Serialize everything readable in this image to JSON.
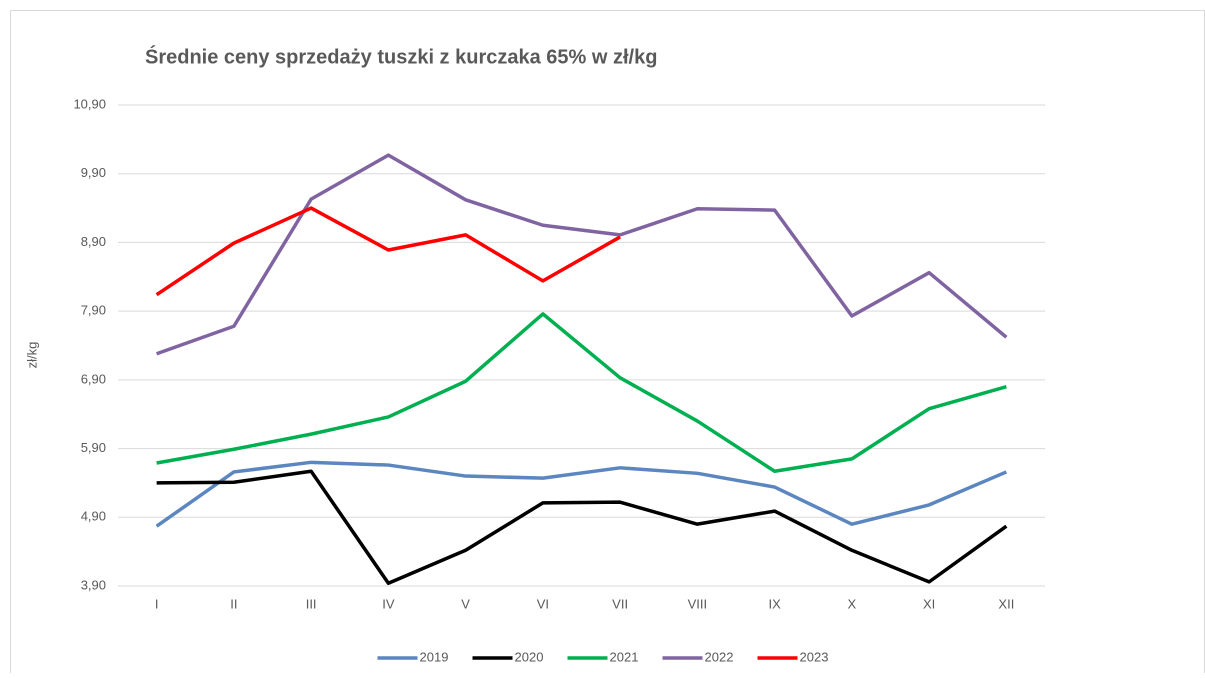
{
  "chart_data": {
    "type": "line",
    "title": "Średnie ceny sprzedaży tuszki z kurczaka 65% w zł/kg",
    "y_label": "zł/kg",
    "categories": [
      "I",
      "II",
      "III",
      "IV",
      "V",
      "VI",
      "VII",
      "VIII",
      "IX",
      "X",
      "XI",
      "XII"
    ],
    "series": [
      {
        "name": "2019",
        "color": "#5b86c0",
        "values": [
          4.77,
          5.56,
          5.7,
          5.66,
          5.5,
          5.47,
          5.62,
          5.54,
          5.34,
          4.8,
          5.08,
          5.56
        ]
      },
      {
        "name": "2020",
        "color": "#000000",
        "values": [
          5.4,
          5.41,
          5.57,
          3.94,
          4.42,
          5.11,
          5.12,
          4.8,
          4.99,
          4.42,
          3.96,
          4.77
        ]
      },
      {
        "name": "2021",
        "color": "#00b050",
        "values": [
          5.69,
          5.89,
          6.11,
          6.36,
          6.88,
          7.86,
          6.93,
          6.3,
          5.57,
          5.75,
          6.48,
          6.8
        ]
      },
      {
        "name": "2022",
        "color": "#8064a2",
        "values": [
          7.28,
          7.68,
          9.53,
          10.17,
          9.52,
          9.15,
          9.01,
          9.39,
          9.37,
          7.83,
          8.46,
          7.52
        ]
      },
      {
        "name": "2023",
        "color": "#ff0000",
        "values": [
          8.14,
          8.89,
          9.4,
          8.79,
          9.01,
          8.34,
          8.98,
          null,
          null,
          null,
          null,
          null
        ]
      }
    ],
    "ylim": [
      3.9,
      10.9
    ],
    "yticks": [
      {
        "value": 3.9,
        "label": "3,90"
      },
      {
        "value": 4.9,
        "label": "4,90"
      },
      {
        "value": 5.9,
        "label": "5,90"
      },
      {
        "value": 6.9,
        "label": "6,90"
      },
      {
        "value": 7.9,
        "label": "7,90"
      },
      {
        "value": 8.9,
        "label": "8,90"
      },
      {
        "value": 9.9,
        "label": "9,90"
      },
      {
        "value": 10.9,
        "label": "10,90"
      }
    ],
    "grid": true,
    "legend": "bottom"
  }
}
